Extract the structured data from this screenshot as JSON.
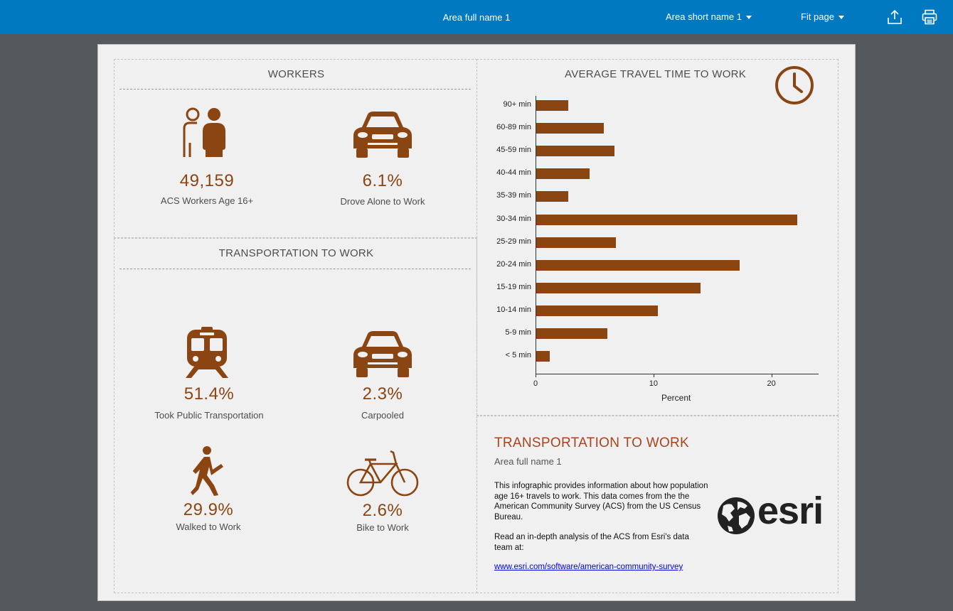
{
  "topbar": {
    "title": "Area full name 1",
    "area_selector": "Area short name 1",
    "zoom_selector": "Fit page",
    "export_icon": "upload-icon",
    "print_icon": "printer-icon"
  },
  "workers": {
    "title": "WORKERS",
    "stats": [
      {
        "value": "49,159",
        "label": "ACS Workers Age 16+",
        "icon": "people-icon"
      },
      {
        "value": "6.1%",
        "label": "Drove Alone to Work",
        "icon": "car-icon"
      }
    ]
  },
  "transport": {
    "title": "TRANSPORTATION TO WORK",
    "stats": [
      {
        "value": "51.4%",
        "label": "Took Public Transportation",
        "icon": "train-icon"
      },
      {
        "value": "2.3%",
        "label": "Carpooled",
        "icon": "car-icon"
      },
      {
        "value": "29.9%",
        "label": "Walked to Work",
        "icon": "walker-icon"
      },
      {
        "value": "2.6%",
        "label": "Bike to Work",
        "icon": "bicycle-icon"
      }
    ]
  },
  "chart_data": {
    "type": "bar",
    "orientation": "horizontal",
    "title": "AVERAGE TRAVEL TIME TO WORK",
    "xlabel": "Percent",
    "ylabel": "",
    "categories": [
      "90+ min",
      "60-89 min",
      "45-59 min",
      "40-44 min",
      "35-39 min",
      "30-34 min",
      "25-29 min",
      "20-24 min",
      "15-19 min",
      "10-14 min",
      "5-9 min",
      "< 5 min"
    ],
    "values": [
      2.8,
      5.8,
      6.7,
      4.6,
      2.8,
      22.2,
      6.8,
      17.3,
      14.0,
      10.4,
      6.1,
      1.2
    ],
    "xlim": [
      0,
      24
    ],
    "xticks": [
      0,
      10,
      20
    ],
    "grid": false,
    "color": "#8b4513",
    "icon": "clock-icon"
  },
  "info": {
    "title": "TRANSPORTATION TO WORK",
    "subtitle": "Area full name 1",
    "paragraph1": "This infographic provides information about how population age 16+ travels to work.  This data comes from the the American Community Survey (ACS) from the US Census Bureau.",
    "paragraph2": "Read an in-depth analysis of the ACS from Esri's data team at:",
    "link": "www.esri.com/software/american-community-survey",
    "logo_text": "esri"
  },
  "colors": {
    "topbar": "#0079c1",
    "accent": "#8b4513",
    "info_title": "#a9431e",
    "background": "#55595c",
    "page": "#f0f0f0"
  }
}
